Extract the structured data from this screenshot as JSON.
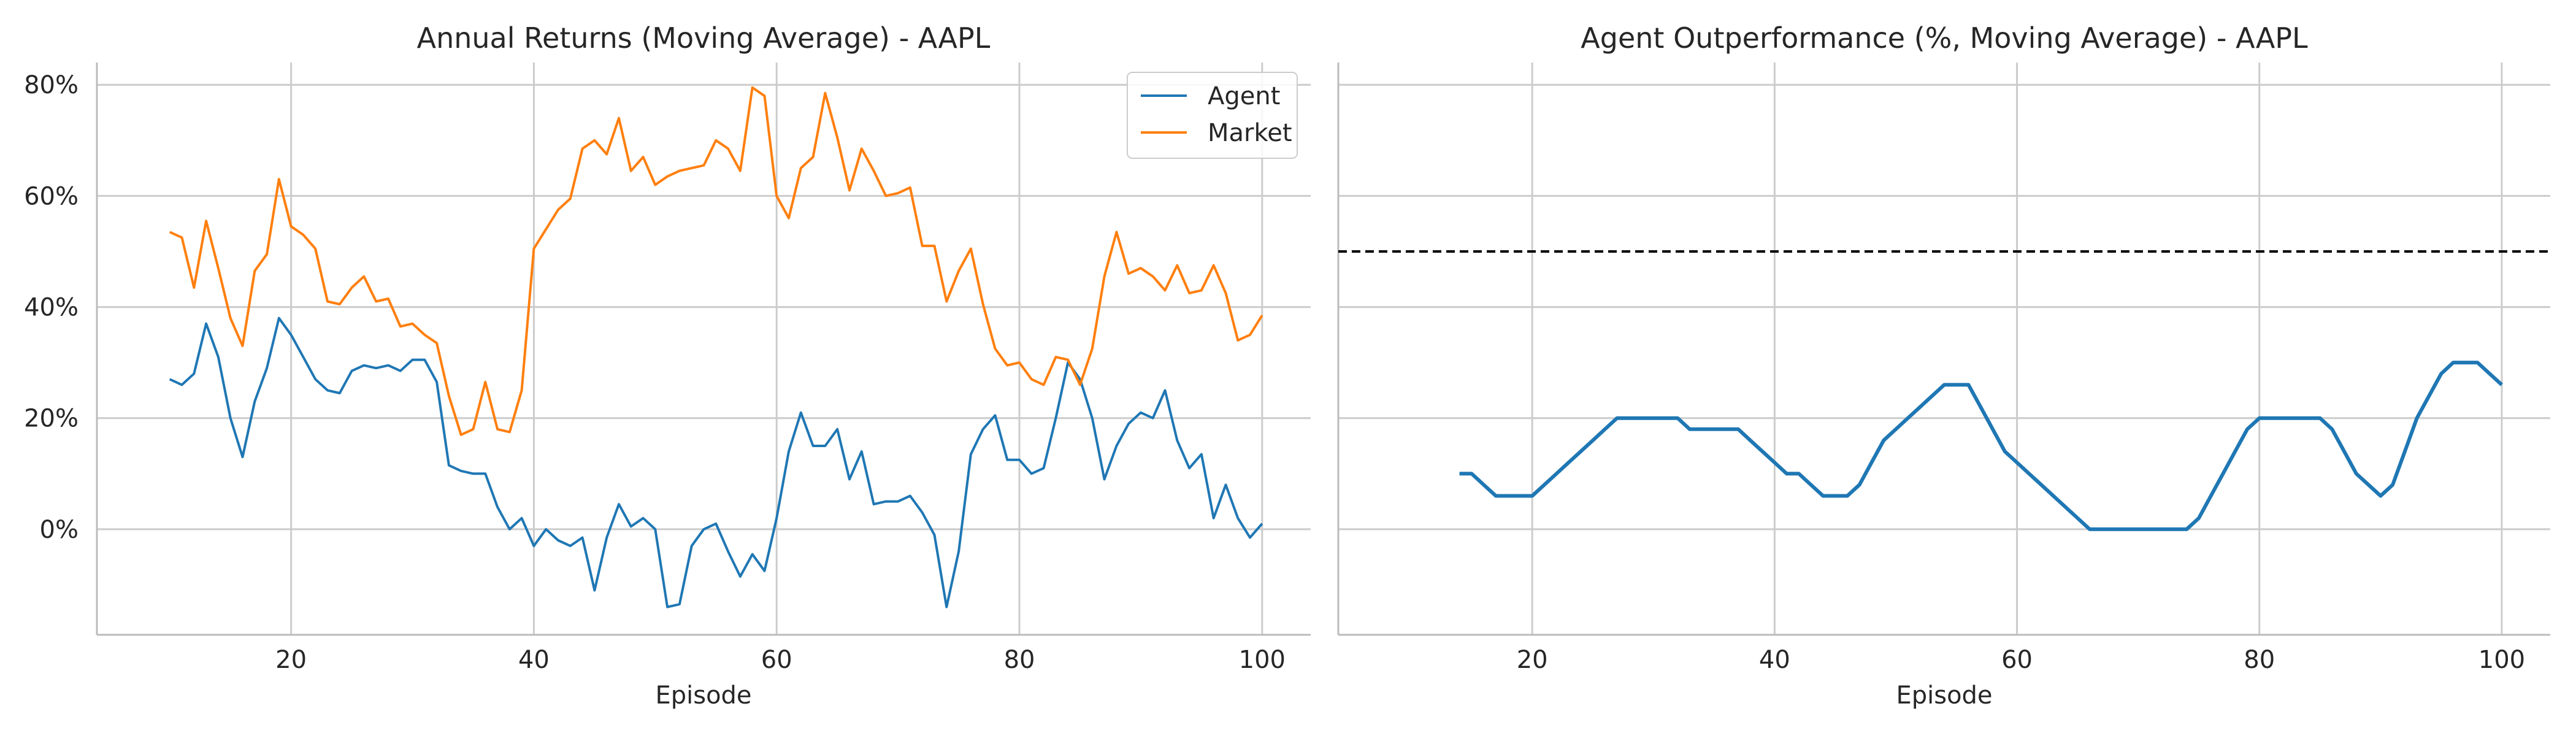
{
  "colors": {
    "agent": "#1f77b4",
    "market": "#ff7f0e",
    "grid": "#cccccc",
    "axis": "#bbbbbb",
    "reference": "#000000"
  },
  "chart_data": [
    {
      "type": "line",
      "title": "Annual Returns (Moving Average) - AAPL",
      "xlabel": "Episode",
      "ylabel": "",
      "xlim": [
        4,
        104
      ],
      "ylim": [
        -0.19,
        0.84
      ],
      "x_ticks": [
        20,
        40,
        60,
        80,
        100
      ],
      "y_ticks": [
        0,
        0.2,
        0.4,
        0.6,
        0.8
      ],
      "y_tick_labels": [
        "0%",
        "20%",
        "40%",
        "60%",
        "80%"
      ],
      "grid": true,
      "legend": "top-right",
      "x_start": 10,
      "series": [
        {
          "name": "Agent",
          "color": "#1f77b4",
          "values": [
            0.27,
            0.26,
            0.28,
            0.37,
            0.31,
            0.2,
            0.13,
            0.23,
            0.29,
            0.38,
            0.35,
            0.31,
            0.27,
            0.25,
            0.245,
            0.285,
            0.295,
            0.29,
            0.295,
            0.285,
            0.305,
            0.305,
            0.265,
            0.115,
            0.105,
            0.1,
            0.1,
            0.04,
            0.0,
            0.02,
            -0.03,
            0.0,
            -0.02,
            -0.03,
            -0.015,
            -0.11,
            -0.015,
            0.045,
            0.005,
            0.02,
            0.0,
            -0.14,
            -0.135,
            -0.03,
            0.0,
            0.01,
            -0.04,
            -0.085,
            -0.045,
            -0.075,
            0.02,
            0.14,
            0.21,
            0.15,
            0.15,
            0.18,
            0.09,
            0.14,
            0.045,
            0.05,
            0.05,
            0.06,
            0.03,
            -0.01,
            -0.14,
            -0.04,
            0.135,
            0.18,
            0.205,
            0.125,
            0.125,
            0.1,
            0.11,
            0.2,
            0.3,
            0.27,
            0.2,
            0.09,
            0.15,
            0.19,
            0.21,
            0.2,
            0.25,
            0.16,
            0.11,
            0.135,
            0.02,
            0.08,
            0.02,
            -0.015,
            0.01
          ]
        },
        {
          "name": "Market",
          "color": "#ff7f0e",
          "values": [
            0.535,
            0.525,
            0.435,
            0.555,
            0.47,
            0.38,
            0.33,
            0.465,
            0.495,
            0.63,
            0.545,
            0.53,
            0.505,
            0.41,
            0.405,
            0.435,
            0.455,
            0.41,
            0.415,
            0.365,
            0.37,
            0.35,
            0.335,
            0.24,
            0.17,
            0.18,
            0.265,
            0.18,
            0.175,
            0.25,
            0.505,
            0.54,
            0.575,
            0.595,
            0.685,
            0.7,
            0.675,
            0.74,
            0.645,
            0.67,
            0.62,
            0.635,
            0.645,
            0.65,
            0.655,
            0.7,
            0.685,
            0.645,
            0.795,
            0.78,
            0.6,
            0.56,
            0.65,
            0.67,
            0.785,
            0.705,
            0.61,
            0.685,
            0.645,
            0.6,
            0.605,
            0.615,
            0.51,
            0.51,
            0.41,
            0.465,
            0.505,
            0.405,
            0.325,
            0.295,
            0.3,
            0.27,
            0.26,
            0.31,
            0.305,
            0.26,
            0.325,
            0.455,
            0.535,
            0.46,
            0.47,
            0.455,
            0.43,
            0.475,
            0.425,
            0.43,
            0.475,
            0.425,
            0.34,
            0.35,
            0.385
          ]
        }
      ]
    },
    {
      "type": "line",
      "title": "Agent Outperformance (%, Moving Average) - AAPL",
      "xlabel": "Episode",
      "ylabel": "",
      "xlim": [
        4,
        104
      ],
      "ylim": [
        -0.19,
        0.84
      ],
      "x_ticks": [
        20,
        40,
        60,
        80,
        100
      ],
      "grid": true,
      "reference_line": 0.5,
      "x_start": 14,
      "series": [
        {
          "name": "",
          "color": "#1f77b4",
          "values": [
            0.1,
            0.1,
            0.08,
            0.06,
            0.06,
            0.06,
            0.06,
            0.08,
            0.1,
            0.12,
            0.14,
            0.16,
            0.18,
            0.2,
            0.2,
            0.2,
            0.2,
            0.2,
            0.2,
            0.18,
            0.18,
            0.18,
            0.18,
            0.18,
            0.16,
            0.14,
            0.12,
            0.1,
            0.1,
            0.08,
            0.06,
            0.06,
            0.06,
            0.08,
            0.12,
            0.16,
            0.18,
            0.2,
            0.22,
            0.24,
            0.26,
            0.26,
            0.26,
            0.22,
            0.18,
            0.14,
            0.12,
            0.1,
            0.08,
            0.06,
            0.04,
            0.02,
            0.0,
            0.0,
            0.0,
            0.0,
            0.0,
            0.0,
            0.0,
            0.0,
            0.0,
            0.02,
            0.06,
            0.1,
            0.14,
            0.18,
            0.2,
            0.2,
            0.2,
            0.2,
            0.2,
            0.2,
            0.18,
            0.14,
            0.1,
            0.08,
            0.06,
            0.08,
            0.14,
            0.2,
            0.24,
            0.28,
            0.3,
            0.3,
            0.3,
            0.28,
            0.26
          ]
        }
      ]
    }
  ]
}
